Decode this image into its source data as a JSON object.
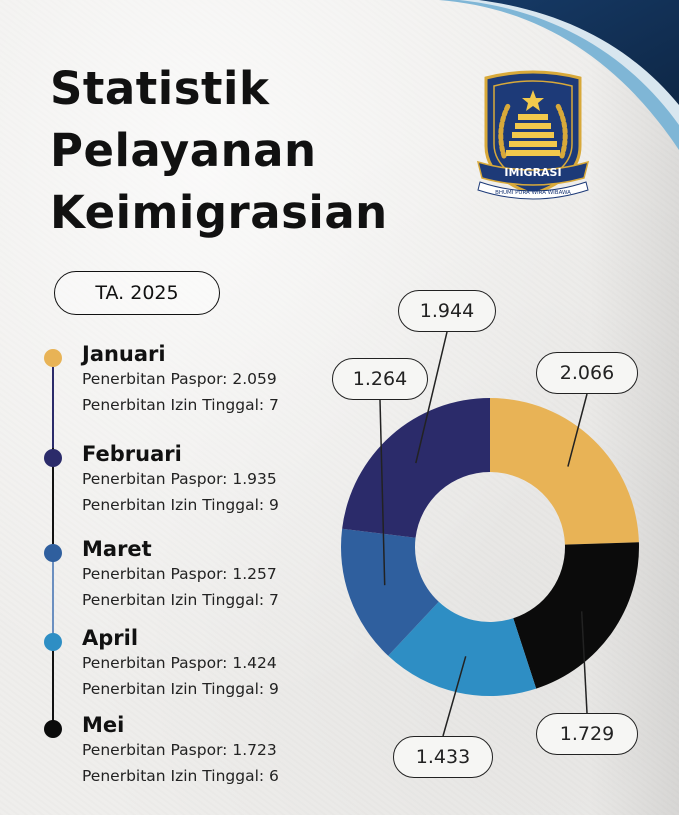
{
  "title": {
    "line1": "Statistik",
    "line2": "Pelayanan",
    "line3": "Keimigrasian"
  },
  "emblem": {
    "icon": "imigrasi-emblem-icon",
    "banner_text": "IMIGRASI",
    "motto": "BHUMI PURA WIRA WIBAWA"
  },
  "year_label": "TA. 2025",
  "months": [
    {
      "name": "Januari",
      "paspor_label": "Penerbitan Paspor: 2.059",
      "izin_label": "Penerbitan Izin Tinggal:  7",
      "color": "#e8b356"
    },
    {
      "name": "Februari",
      "paspor_label": "Penerbitan Paspor: 1.935",
      "izin_label": "Penerbitan Izin Tinggal:  9",
      "color": "#2b2b6a"
    },
    {
      "name": "Maret",
      "paspor_label": "Penerbitan Paspor: 1.257",
      "izin_label": "Penerbitan Izin Tinggal:  7",
      "color": "#2f5f9e"
    },
    {
      "name": "April",
      "paspor_label": "Penerbitan Paspor: 1.424",
      "izin_label": "Penerbitan Izin Tinggal:  9",
      "color": "#2e8ec4"
    },
    {
      "name": "Mei",
      "paspor_label": "Penerbitan Paspor: 1.723",
      "izin_label": "Penerbitan Izin Tinggal:  6",
      "color": "#0b0b0b"
    }
  ],
  "chart_data": {
    "type": "pie",
    "donut": true,
    "categories": [
      "Januari",
      "Februari",
      "Maret",
      "April",
      "Mei"
    ],
    "values": [
      2066,
      1944,
      1264,
      1433,
      1729
    ],
    "value_labels": [
      "2.066",
      "1.944",
      "1.264",
      "1.433",
      "1.729"
    ],
    "colors": [
      "#e8b356",
      "#2b2b6a",
      "#2f5f9e",
      "#2e8ec4",
      "#0b0b0b"
    ],
    "title": "",
    "legend": "left"
  }
}
